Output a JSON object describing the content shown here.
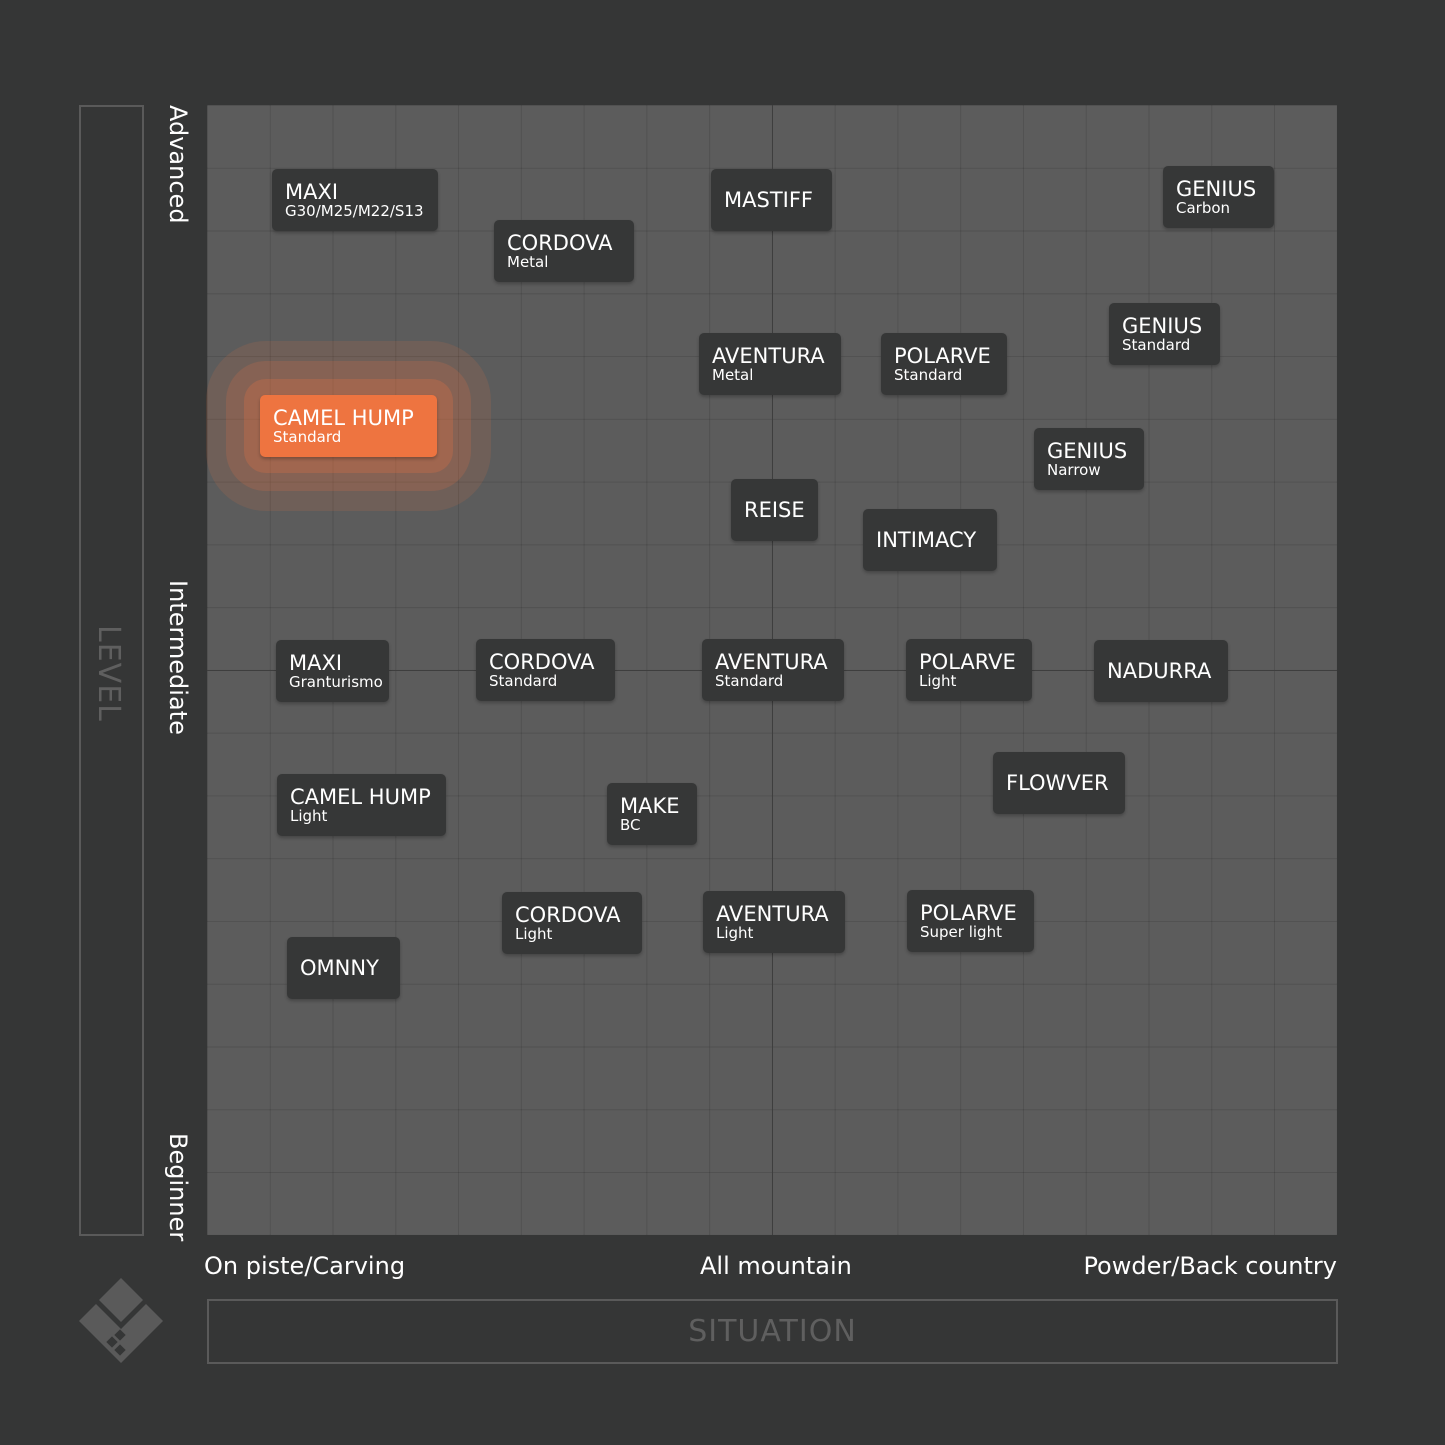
{
  "axes": {
    "y_title": "LEVEL",
    "y_labels": [
      "Advanced",
      "Intermediate",
      "Beginner"
    ],
    "x_title": "SITUATION",
    "x_labels": [
      "On piste/Carving",
      "All mountain",
      "Powder/Back country"
    ]
  },
  "nodes": [
    {
      "name": "MAXI",
      "variant": "G30/M25/M22/S13"
    },
    {
      "name": "CORDOVA",
      "variant": "Metal"
    },
    {
      "name": "MASTIFF"
    },
    {
      "name": "GENIUS",
      "variant": "Carbon"
    },
    {
      "name": "GENIUS",
      "variant": "Standard"
    },
    {
      "name": "AVENTURA",
      "variant": "Metal"
    },
    {
      "name": "POLARVE",
      "variant": "Standard"
    },
    {
      "name": "CAMEL HUMP",
      "variant": "Standard",
      "highlighted": true
    },
    {
      "name": "GENIUS",
      "variant": "Narrow"
    },
    {
      "name": "REISE"
    },
    {
      "name": "INTIMACY"
    },
    {
      "name": "MAXI",
      "variant": "Granturismo"
    },
    {
      "name": "CORDOVA",
      "variant": "Standard"
    },
    {
      "name": "AVENTURA",
      "variant": "Standard"
    },
    {
      "name": "POLARVE",
      "variant": "Light"
    },
    {
      "name": "NADURRA"
    },
    {
      "name": "FLOWVER"
    },
    {
      "name": "CAMEL HUMP",
      "variant": "Light"
    },
    {
      "name": "MAKE",
      "variant": "BC"
    },
    {
      "name": "CORDOVA",
      "variant": "Light"
    },
    {
      "name": "AVENTURA",
      "variant": "Light"
    },
    {
      "name": "POLARVE",
      "variant": "Super light"
    },
    {
      "name": "OMNNY"
    }
  ]
}
